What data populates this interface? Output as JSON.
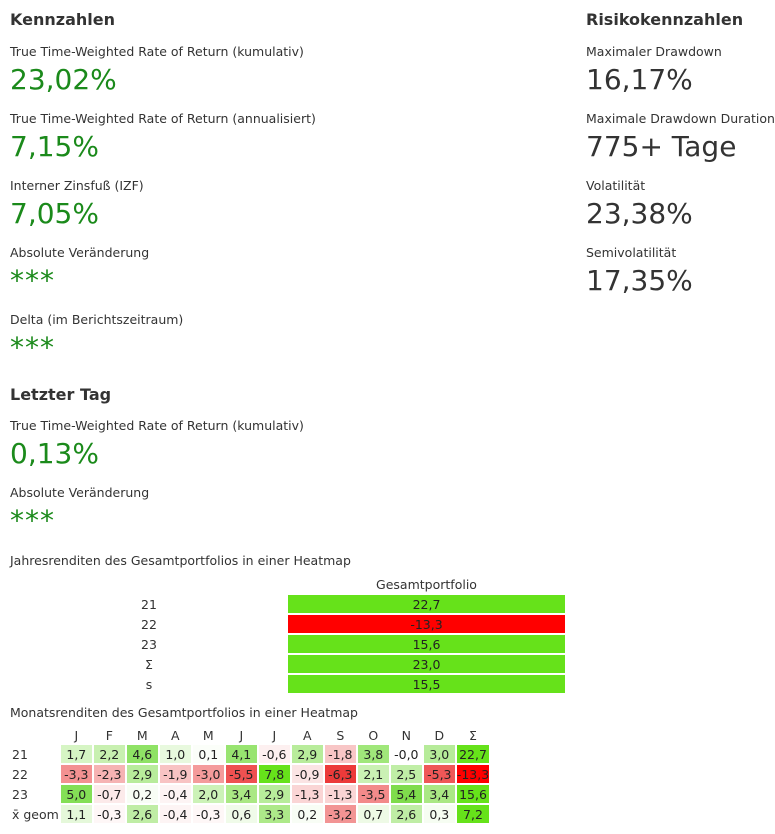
{
  "kennzahlen": {
    "title": "Kennzahlen",
    "metrics": [
      {
        "label": "True Time-Weighted Rate of Return (kumulativ)",
        "value": "23,02%"
      },
      {
        "label": "True Time-Weighted Rate of Return (annualisiert)",
        "value": "7,15%"
      },
      {
        "label": "Interner Zinsfuß (IZF)",
        "value": "7,05%"
      },
      {
        "label": "Absolute Veränderung",
        "value": "***"
      },
      {
        "label": "Delta (im Berichtszeitraum)",
        "value": "***"
      }
    ]
  },
  "letzter_tag": {
    "title": "Letzter Tag",
    "metrics": [
      {
        "label": "True Time-Weighted Rate of Return (kumulativ)",
        "value": "0,13%"
      },
      {
        "label": "Absolute Veränderung",
        "value": "***"
      }
    ]
  },
  "risiko": {
    "title": "Risikokennzahlen",
    "metrics": [
      {
        "label": "Maximaler Drawdown",
        "value": "16,17%"
      },
      {
        "label": "Maximale Drawdown Duration",
        "value": "775+ Tage"
      },
      {
        "label": "Volatilität",
        "value": "23,38%"
      },
      {
        "label": "Semivolatilität",
        "value": "17,35%"
      }
    ]
  },
  "yearly_heatmap": {
    "label": "Jahresrenditen des Gesamtportfolios in einer Heatmap",
    "column_header": "Gesamtportfolio",
    "rows": [
      {
        "label": "21",
        "value": "22,7",
        "color": "#66e21a"
      },
      {
        "label": "22",
        "value": "-13,3",
        "color": "#ff0000"
      },
      {
        "label": "23",
        "value": "15,6",
        "color": "#66e21a"
      },
      {
        "label": "Σ",
        "value": "23,0",
        "color": "#66e21a"
      },
      {
        "label": "s",
        "value": "15,5",
        "color": "#66e21a"
      }
    ]
  },
  "monthly_heatmap": {
    "label": "Monatsrenditen des Gesamtportfolios in einer Heatmap",
    "headers": [
      "",
      "J",
      "F",
      "M",
      "A",
      "M",
      "J",
      "J",
      "A",
      "S",
      "O",
      "N",
      "D",
      "Σ"
    ],
    "rows": [
      {
        "label": "21",
        "cells": [
          {
            "v": "1,7",
            "c": "#d6f5c4"
          },
          {
            "v": "2,2",
            "c": "#c8f0b0"
          },
          {
            "v": "4,6",
            "c": "#8fe265"
          },
          {
            "v": "1,0",
            "c": "#e8f9de"
          },
          {
            "v": "0,1",
            "c": "#fbfef9"
          },
          {
            "v": "4,1",
            "c": "#98e470"
          },
          {
            "v": "-0,6",
            "c": "#fdf0f0"
          },
          {
            "v": "2,9",
            "c": "#b8ec9b"
          },
          {
            "v": "-1,8",
            "c": "#f8c6c6"
          },
          {
            "v": "3,8",
            "c": "#a0e77a"
          },
          {
            "v": "-0,0",
            "c": "#ffffff"
          },
          {
            "v": "3,0",
            "c": "#b6eb99"
          },
          {
            "v": "22,7",
            "c": "#66e21a"
          }
        ]
      },
      {
        "label": "22",
        "cells": [
          {
            "v": "-3,3",
            "c": "#f39191"
          },
          {
            "v": "-2,3",
            "c": "#f6b3b3"
          },
          {
            "v": "2,9",
            "c": "#b8ec9b"
          },
          {
            "v": "-1,9",
            "c": "#f8c3c3"
          },
          {
            "v": "-3,0",
            "c": "#f49b9b"
          },
          {
            "v": "-5,5",
            "c": "#ee5151"
          },
          {
            "v": "7,8",
            "c": "#66e21a"
          },
          {
            "v": "-0,9",
            "c": "#fbe4e4"
          },
          {
            "v": "-6,3",
            "c": "#ec3a3a"
          },
          {
            "v": "2,1",
            "c": "#caf1b4"
          },
          {
            "v": "2,5",
            "c": "#c0ee a6"
          },
          {
            "v": "-5,3",
            "c": "#ef5757"
          },
          {
            "v": "-13,3",
            "c": "#ff0000"
          }
        ]
      },
      {
        "label": "23",
        "cells": [
          {
            "v": "5,0",
            "c": "#84df56"
          },
          {
            "v": "-0,7",
            "c": "#fceaea"
          },
          {
            "v": "0,2",
            "c": "#f8fdf5"
          },
          {
            "v": "-0,4",
            "c": "#fdf4f4"
          },
          {
            "v": "2,0",
            "c": "#ccf2b7"
          },
          {
            "v": "3,4",
            "c": "#aae884"
          },
          {
            "v": "2,9",
            "c": "#b8ec9b"
          },
          {
            "v": "-1,3",
            "c": "#fad5d5"
          },
          {
            "v": "-1,3",
            "c": "#fad5d5"
          },
          {
            "v": "-3,5",
            "c": "#f28a8a"
          },
          {
            "v": "5,4",
            "c": "#7fdc4c"
          },
          {
            "v": "3,4",
            "c": "#aae884"
          },
          {
            "v": "15,6",
            "c": "#66e21a"
          }
        ]
      },
      {
        "label": "x̄ geom",
        "cells": [
          {
            "v": "1,1",
            "c": "#e5f8da"
          },
          {
            "v": "-0,3",
            "c": "#fef7f7"
          },
          {
            "v": "2,6",
            "c": "#bfeda5"
          },
          {
            "v": "-0,4",
            "c": "#fdf4f4"
          },
          {
            "v": "-0,3",
            "c": "#fef7f7"
          },
          {
            "v": "0,6",
            "c": "#f0fbe9"
          },
          {
            "v": "3,3",
            "c": "#ade989"
          },
          {
            "v": "0,2",
            "c": "#f8fdf5"
          },
          {
            "v": "-3,2",
            "c": "#f29494"
          },
          {
            "v": "0,7",
            "c": "#eefae6"
          },
          {
            "v": "2,6",
            "c": "#bfeda5"
          },
          {
            "v": "0,3",
            "c": "#f6fdf2"
          },
          {
            "v": "7,2",
            "c": "#66e21a"
          }
        ]
      }
    ]
  }
}
